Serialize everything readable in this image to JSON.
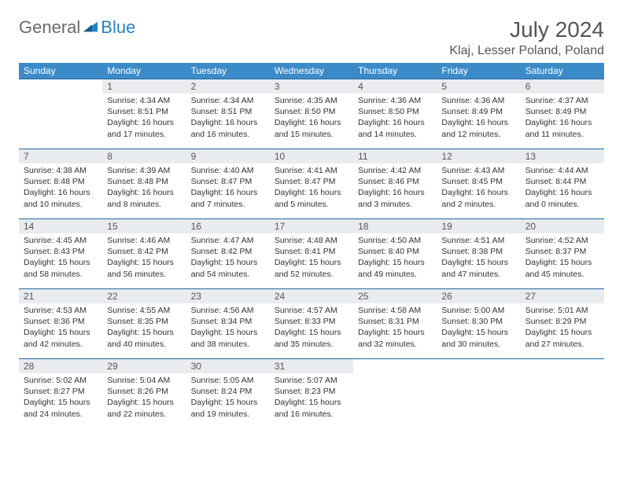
{
  "brand": {
    "part1": "General",
    "part2": "Blue"
  },
  "title": "July 2024",
  "location": "Klaj, Lesser Poland, Poland",
  "colors": {
    "header_bg": "#3b8bc9",
    "header_text": "#ffffff",
    "daynum_bg": "#e9ecef",
    "row_border": "#2266a0",
    "logo_blue": "#2b7fbf",
    "text_gray": "#555555"
  },
  "weekdays": [
    "Sunday",
    "Monday",
    "Tuesday",
    "Wednesday",
    "Thursday",
    "Friday",
    "Saturday"
  ],
  "start_offset": 1,
  "days": [
    {
      "n": 1,
      "sunrise": "4:34 AM",
      "sunset": "8:51 PM",
      "daylight": "16 hours and 17 minutes."
    },
    {
      "n": 2,
      "sunrise": "4:34 AM",
      "sunset": "8:51 PM",
      "daylight": "16 hours and 16 minutes."
    },
    {
      "n": 3,
      "sunrise": "4:35 AM",
      "sunset": "8:50 PM",
      "daylight": "16 hours and 15 minutes."
    },
    {
      "n": 4,
      "sunrise": "4:36 AM",
      "sunset": "8:50 PM",
      "daylight": "16 hours and 14 minutes."
    },
    {
      "n": 5,
      "sunrise": "4:36 AM",
      "sunset": "8:49 PM",
      "daylight": "16 hours and 12 minutes."
    },
    {
      "n": 6,
      "sunrise": "4:37 AM",
      "sunset": "8:49 PM",
      "daylight": "16 hours and 11 minutes."
    },
    {
      "n": 7,
      "sunrise": "4:38 AM",
      "sunset": "8:48 PM",
      "daylight": "16 hours and 10 minutes."
    },
    {
      "n": 8,
      "sunrise": "4:39 AM",
      "sunset": "8:48 PM",
      "daylight": "16 hours and 8 minutes."
    },
    {
      "n": 9,
      "sunrise": "4:40 AM",
      "sunset": "8:47 PM",
      "daylight": "16 hours and 7 minutes."
    },
    {
      "n": 10,
      "sunrise": "4:41 AM",
      "sunset": "8:47 PM",
      "daylight": "16 hours and 5 minutes."
    },
    {
      "n": 11,
      "sunrise": "4:42 AM",
      "sunset": "8:46 PM",
      "daylight": "16 hours and 3 minutes."
    },
    {
      "n": 12,
      "sunrise": "4:43 AM",
      "sunset": "8:45 PM",
      "daylight": "16 hours and 2 minutes."
    },
    {
      "n": 13,
      "sunrise": "4:44 AM",
      "sunset": "8:44 PM",
      "daylight": "16 hours and 0 minutes."
    },
    {
      "n": 14,
      "sunrise": "4:45 AM",
      "sunset": "8:43 PM",
      "daylight": "15 hours and 58 minutes."
    },
    {
      "n": 15,
      "sunrise": "4:46 AM",
      "sunset": "8:42 PM",
      "daylight": "15 hours and 56 minutes."
    },
    {
      "n": 16,
      "sunrise": "4:47 AM",
      "sunset": "8:42 PM",
      "daylight": "15 hours and 54 minutes."
    },
    {
      "n": 17,
      "sunrise": "4:48 AM",
      "sunset": "8:41 PM",
      "daylight": "15 hours and 52 minutes."
    },
    {
      "n": 18,
      "sunrise": "4:50 AM",
      "sunset": "8:40 PM",
      "daylight": "15 hours and 49 minutes."
    },
    {
      "n": 19,
      "sunrise": "4:51 AM",
      "sunset": "8:38 PM",
      "daylight": "15 hours and 47 minutes."
    },
    {
      "n": 20,
      "sunrise": "4:52 AM",
      "sunset": "8:37 PM",
      "daylight": "15 hours and 45 minutes."
    },
    {
      "n": 21,
      "sunrise": "4:53 AM",
      "sunset": "8:36 PM",
      "daylight": "15 hours and 42 minutes."
    },
    {
      "n": 22,
      "sunrise": "4:55 AM",
      "sunset": "8:35 PM",
      "daylight": "15 hours and 40 minutes."
    },
    {
      "n": 23,
      "sunrise": "4:56 AM",
      "sunset": "8:34 PM",
      "daylight": "15 hours and 38 minutes."
    },
    {
      "n": 24,
      "sunrise": "4:57 AM",
      "sunset": "8:33 PM",
      "daylight": "15 hours and 35 minutes."
    },
    {
      "n": 25,
      "sunrise": "4:58 AM",
      "sunset": "8:31 PM",
      "daylight": "15 hours and 32 minutes."
    },
    {
      "n": 26,
      "sunrise": "5:00 AM",
      "sunset": "8:30 PM",
      "daylight": "15 hours and 30 minutes."
    },
    {
      "n": 27,
      "sunrise": "5:01 AM",
      "sunset": "8:29 PM",
      "daylight": "15 hours and 27 minutes."
    },
    {
      "n": 28,
      "sunrise": "5:02 AM",
      "sunset": "8:27 PM",
      "daylight": "15 hours and 24 minutes."
    },
    {
      "n": 29,
      "sunrise": "5:04 AM",
      "sunset": "8:26 PM",
      "daylight": "15 hours and 22 minutes."
    },
    {
      "n": 30,
      "sunrise": "5:05 AM",
      "sunset": "8:24 PM",
      "daylight": "15 hours and 19 minutes."
    },
    {
      "n": 31,
      "sunrise": "5:07 AM",
      "sunset": "8:23 PM",
      "daylight": "15 hours and 16 minutes."
    }
  ]
}
